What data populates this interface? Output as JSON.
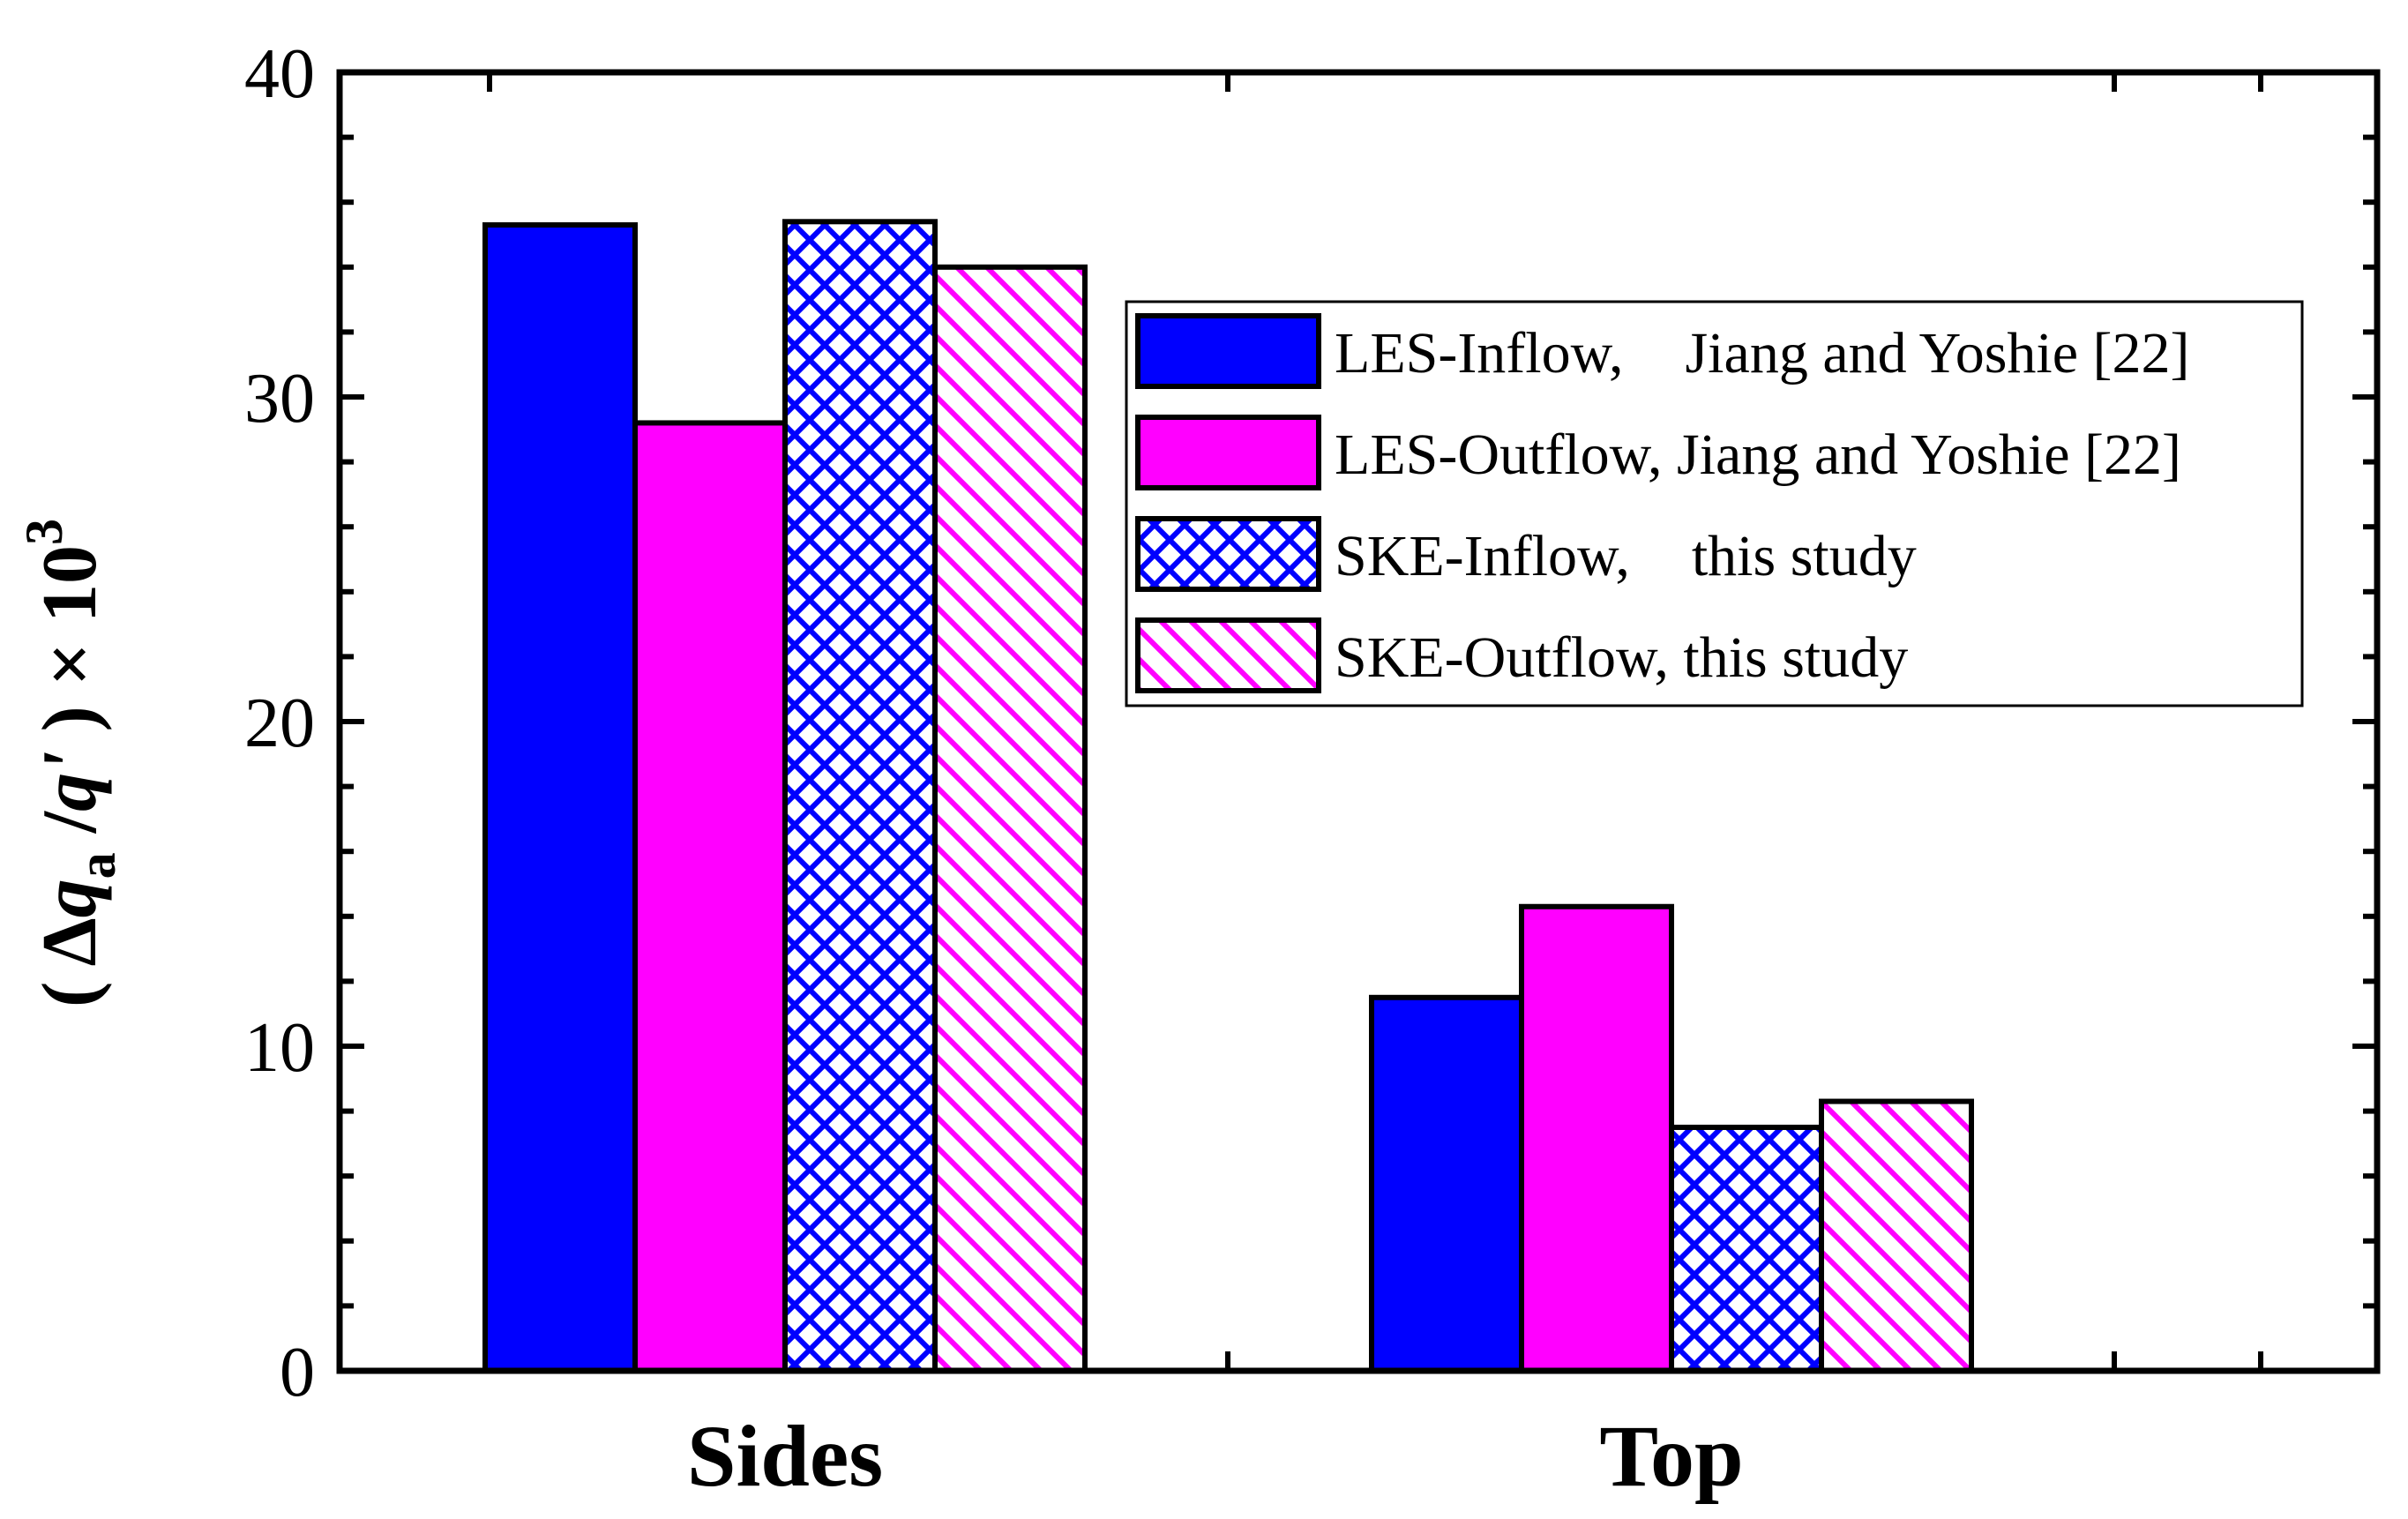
{
  "chart_data": {
    "type": "bar",
    "categories": [
      "Sides",
      "Top"
    ],
    "series": [
      {
        "name": "LES-Inflow, Jiang and Yoshie [22]",
        "legend_parts": [
          "LES-Inflow,",
          "Jiang and Yoshie [22]"
        ],
        "values": [
          35.3,
          11.5
        ],
        "fill": "solid",
        "color": "#0000ff"
      },
      {
        "name": "LES-Outflow, Jiang and Yoshie [22]",
        "legend_parts": [
          "LES-Outflow, Jiang and Yoshie [22]"
        ],
        "values": [
          29.2,
          14.3
        ],
        "fill": "solid",
        "color": "#ff00ff"
      },
      {
        "name": "SKE-Inflow, this study",
        "legend_parts": [
          "SKE-Inflow,",
          "this study"
        ],
        "values": [
          35.4,
          7.5
        ],
        "fill": "crosshatch",
        "color": "#0000ff"
      },
      {
        "name": "SKE-Outflow, this study",
        "legend_parts": [
          "SKE-Outflow, this study"
        ],
        "values": [
          34.0,
          8.3
        ],
        "fill": "diagonal",
        "color": "#ff00ff"
      }
    ],
    "ylim": [
      0,
      40
    ],
    "yticks": [
      0,
      10,
      20,
      30,
      40
    ],
    "y_minor_step": 2,
    "xlabel": "",
    "ylabel": "( Δqa /q' ) × 10³",
    "ylabel_parts": {
      "open": "( Δ",
      "q": "q",
      "sub": "a",
      "slash": " /",
      "qprime": "q'",
      "close": " ) × 10",
      "exp": "3"
    },
    "legend_position": "upper-right",
    "title": "",
    "grid": false
  }
}
